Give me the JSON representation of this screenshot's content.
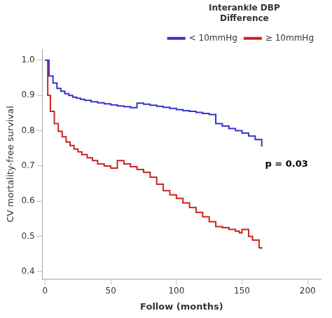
{
  "chart_data": {
    "type": "line",
    "line_style": "steps",
    "xlabel": "Follow (months)",
    "ylabel": "CV mortality-free survival",
    "xlim": [
      -2,
      210
    ],
    "ylim": [
      0.38,
      1.03
    ],
    "xticks": [
      0,
      50,
      100,
      150,
      200
    ],
    "yticks": [
      0.4,
      0.5,
      0.6,
      0.7,
      0.8,
      0.9,
      {
        "value": 1.0,
        "label": "1.0"
      }
    ],
    "grid": false,
    "legend": "upper right",
    "legend_title": "Interankle DBP\nDifference",
    "annotations": [
      "p = 0.03"
    ],
    "series": [
      {
        "name": "< 10mmHg",
        "color": "#3333cc",
        "x": [
          0,
          3,
          6,
          9,
          12,
          15,
          18,
          21,
          24,
          27,
          30,
          35,
          40,
          45,
          50,
          55,
          60,
          65,
          70,
          75,
          80,
          85,
          90,
          95,
          100,
          105,
          110,
          115,
          120,
          125,
          130,
          135,
          140,
          145,
          150,
          155,
          160,
          165
        ],
        "values": [
          1.0,
          0.955,
          0.935,
          0.92,
          0.912,
          0.905,
          0.9,
          0.895,
          0.892,
          0.889,
          0.886,
          0.882,
          0.879,
          0.876,
          0.873,
          0.87,
          0.868,
          0.865,
          0.878,
          0.875,
          0.872,
          0.869,
          0.866,
          0.863,
          0.86,
          0.857,
          0.855,
          0.852,
          0.849,
          0.846,
          0.82,
          0.813,
          0.806,
          0.8,
          0.793,
          0.785,
          0.775,
          0.755
        ]
      },
      {
        "name": "≥ 10mmHg",
        "color": "#cc2222",
        "x": [
          0,
          2,
          4,
          7,
          10,
          13,
          16,
          19,
          22,
          25,
          28,
          32,
          36,
          40,
          45,
          50,
          55,
          60,
          65,
          70,
          75,
          80,
          85,
          90,
          95,
          100,
          105,
          110,
          115,
          120,
          125,
          130,
          135,
          140,
          145,
          148,
          150,
          155,
          158,
          163,
          165
        ],
        "values": [
          1.0,
          0.9,
          0.855,
          0.82,
          0.798,
          0.783,
          0.768,
          0.758,
          0.748,
          0.74,
          0.732,
          0.723,
          0.715,
          0.706,
          0.7,
          0.694,
          0.715,
          0.706,
          0.698,
          0.69,
          0.682,
          0.668,
          0.648,
          0.63,
          0.618,
          0.608,
          0.595,
          0.582,
          0.568,
          0.556,
          0.542,
          0.528,
          0.525,
          0.52,
          0.515,
          0.51,
          0.52,
          0.5,
          0.49,
          0.468,
          0.465
        ]
      }
    ]
  }
}
